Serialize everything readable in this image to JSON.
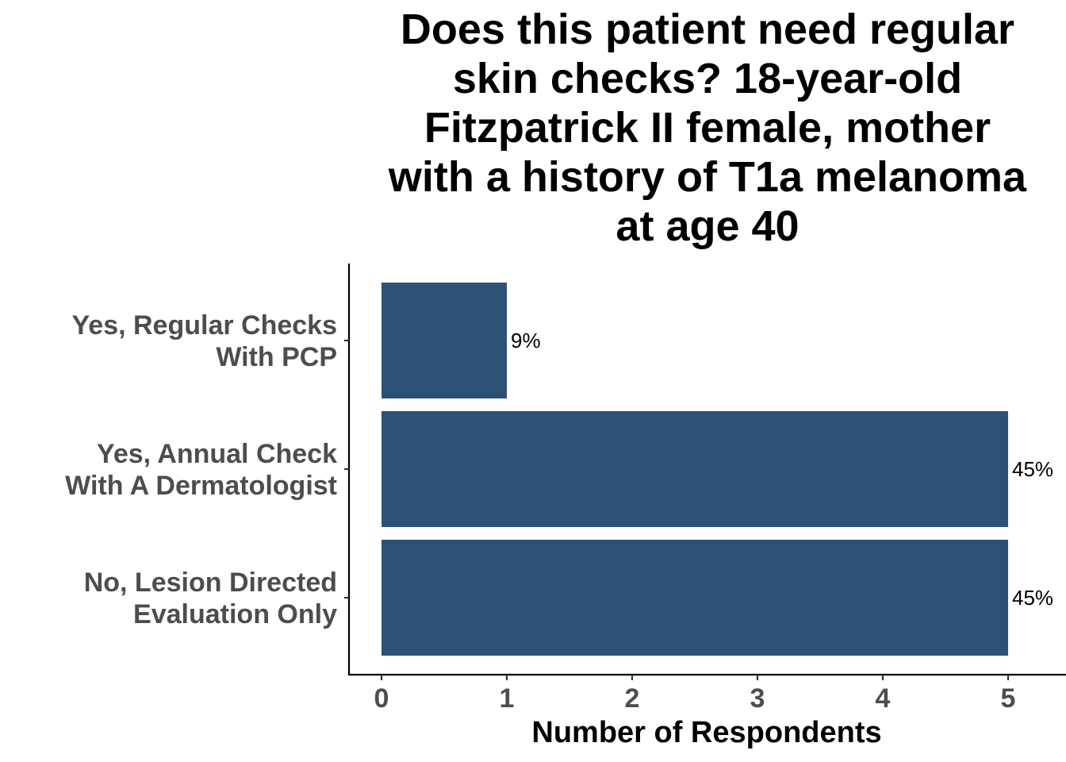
{
  "chart_data": {
    "type": "bar",
    "orientation": "horizontal",
    "title_lines": [
      "Does this patient need regular",
      "skin checks? 18-year-old",
      "Fitzpatrick II female, mother",
      "with a history of T1a melanoma",
      "at age 40"
    ],
    "xlabel": "Number of Respondents",
    "ylabel": "",
    "xlim": [
      0,
      5
    ],
    "x_ticks": [
      "0",
      "1",
      "2",
      "3",
      "4",
      "5"
    ],
    "categories": [
      [
        "Yes, Regular Checks",
        "With PCP"
      ],
      [
        "Yes, Annual Check",
        "With A Dermatologist"
      ],
      [
        "No, Lesion Directed",
        "Evaluation Only"
      ]
    ],
    "values": [
      1,
      5,
      5
    ],
    "data_labels": [
      "9%",
      "45%",
      "45%"
    ],
    "bar_color": "#2c5175",
    "grid": false,
    "legend": "none"
  }
}
